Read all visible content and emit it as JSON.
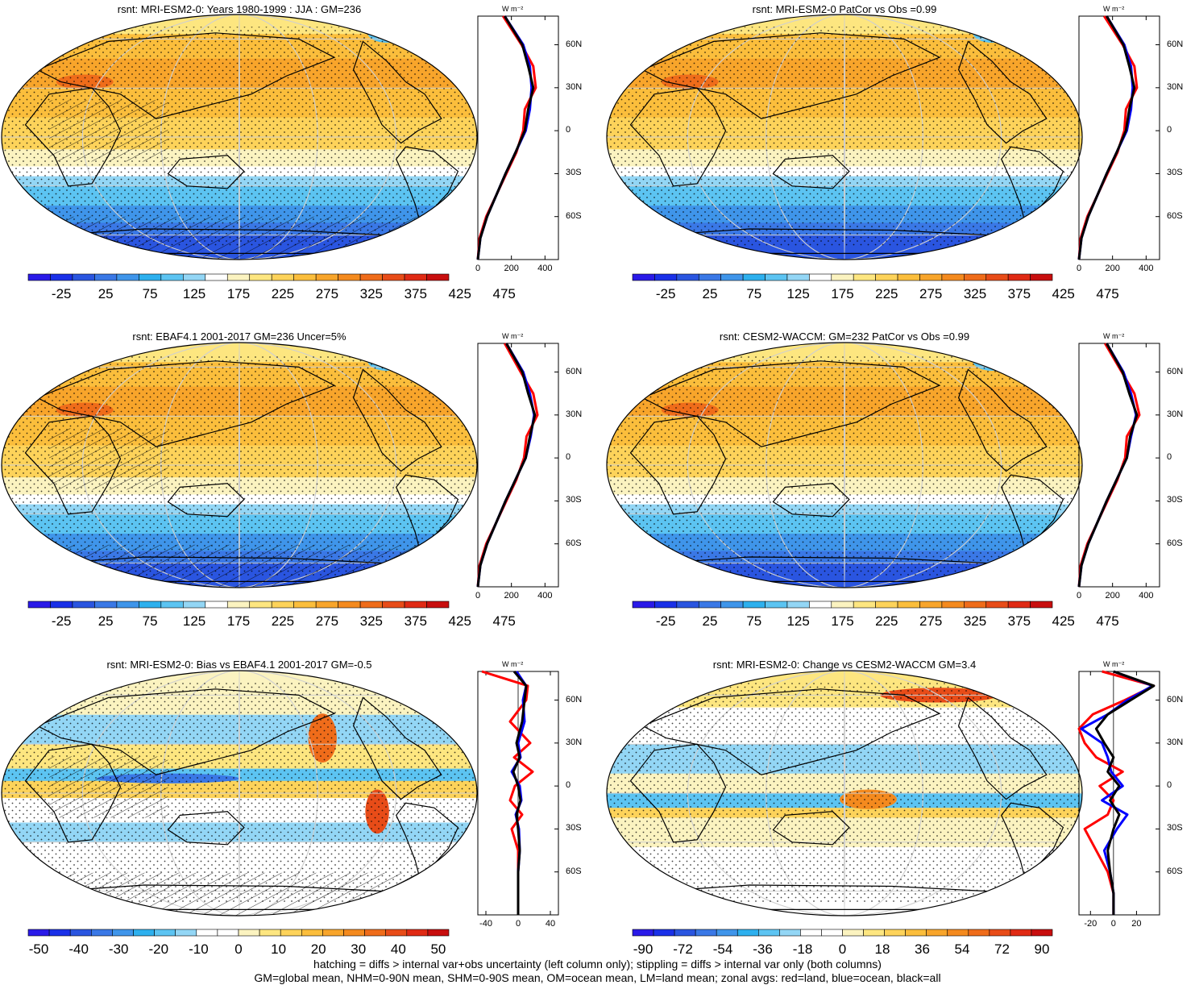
{
  "panels": [
    {
      "id": "p1",
      "title": "rsnt: MRI-ESM2-0: Years 1980-1999 : JJA : GM=236",
      "kind": "abs",
      "hatch": true,
      "cbar_labels": [
        "-25",
        "25",
        "75",
        "125",
        "175",
        "225",
        "275",
        "325",
        "375",
        "425",
        "475"
      ],
      "zonal_xticks": [
        "0",
        "200",
        "400"
      ],
      "zonal_xlim": [
        0,
        480
      ]
    },
    {
      "id": "p2",
      "title": "rsnt: MRI-ESM2-0 PatCor vs Obs =0.99",
      "kind": "abs",
      "hatch": false,
      "cbar_labels": [
        "-25",
        "25",
        "75",
        "125",
        "175",
        "225",
        "275",
        "325",
        "375",
        "425",
        "475"
      ],
      "zonal_xticks": [
        "0",
        "200",
        "400"
      ],
      "zonal_xlim": [
        0,
        480
      ]
    },
    {
      "id": "p3",
      "title": "rsnt: EBAF4.1 2001-2017 GM=236 Uncer=5%",
      "kind": "abs",
      "hatch": true,
      "cbar_labels": [
        "-25",
        "25",
        "75",
        "125",
        "175",
        "225",
        "275",
        "325",
        "375",
        "425",
        "475"
      ],
      "zonal_xticks": [
        "0",
        "200",
        "400"
      ],
      "zonal_xlim": [
        0,
        480
      ]
    },
    {
      "id": "p4",
      "title": "rsnt: CESM2-WACCM: GM=232 PatCor vs Obs =0.99",
      "kind": "abs",
      "hatch": false,
      "cbar_labels": [
        "-25",
        "25",
        "75",
        "125",
        "175",
        "225",
        "275",
        "325",
        "375",
        "425",
        "475"
      ],
      "zonal_xticks": [
        "0",
        "200",
        "400"
      ],
      "zonal_xlim": [
        0,
        480
      ]
    },
    {
      "id": "p5",
      "title": "rsnt: MRI-ESM2-0: Bias vs EBAF4.1 2001-2017 GM=-0.5",
      "kind": "diff",
      "hatch": true,
      "cbar_labels": [
        "-50",
        "-40",
        "-30",
        "-20",
        "-10",
        "0",
        "10",
        "20",
        "30",
        "40",
        "50"
      ],
      "zonal_xticks": [
        "-40",
        "0",
        "40"
      ],
      "zonal_xlim": [
        -50,
        50
      ]
    },
    {
      "id": "p6",
      "title": "rsnt: MRI-ESM2-0: Change vs CESM2-WACCM GM=3.4",
      "kind": "diff",
      "hatch": false,
      "cbar_labels": [
        "-90",
        "-72",
        "-54",
        "-36",
        "-18",
        "0",
        "18",
        "36",
        "54",
        "72",
        "90"
      ],
      "zonal_xticks": [
        "-20",
        "0",
        "20"
      ],
      "zonal_xlim": [
        -30,
        40
      ]
    }
  ],
  "zonal_unit": "W m⁻²",
  "lat_ticks": [
    "60N",
    "30N",
    "0",
    "30S",
    "60S"
  ],
  "colors": {
    "land": "#ff0000",
    "ocean": "#0000ff",
    "all": "#000000"
  },
  "footer": {
    "line1": "hatching = diffs > internal var+obs uncertainty (left column only); stippling = diffs > internal var only (both columns)",
    "line2": "GM=global mean, NHM=0-90N mean, SHM=0-90S mean, OM=ocean mean, LM=land mean; zonal avgs: red=land, blue=ocean, black=all"
  },
  "chart_data": [
    {
      "type": "heatmap",
      "title": "rsnt: MRI-ESM2-0: Years 1980-1999 : JJA : GM=236",
      "zonal_mean": {
        "lat": [
          80,
          60,
          45,
          30,
          15,
          0,
          -15,
          -30,
          -45,
          -60,
          -75,
          -90
        ],
        "all": [
          160,
          265,
          300,
          330,
          300,
          280,
          225,
          165,
          110,
          55,
          15,
          0
        ],
        "land": [
          150,
          260,
          330,
          345,
          280,
          270,
          230,
          170,
          110,
          50,
          10,
          0
        ],
        "ocean": [
          160,
          270,
          310,
          320,
          310,
          285,
          225,
          165,
          110,
          55,
          15,
          0
        ]
      }
    },
    {
      "type": "heatmap",
      "title": "rsnt: MRI-ESM2-0 PatCor vs Obs =0.99",
      "zonal_mean": {
        "lat": [
          80,
          60,
          45,
          30,
          15,
          0,
          -15,
          -30,
          -45,
          -60,
          -75,
          -90
        ],
        "all": [
          165,
          265,
          300,
          330,
          300,
          280,
          225,
          165,
          110,
          55,
          15,
          0
        ],
        "land": [
          150,
          260,
          330,
          345,
          280,
          270,
          230,
          170,
          110,
          50,
          10,
          0
        ],
        "ocean": [
          165,
          270,
          310,
          320,
          310,
          285,
          225,
          165,
          110,
          55,
          15,
          0
        ]
      }
    },
    {
      "type": "heatmap",
      "title": "rsnt: EBAF4.1 2001-2017 GM=236 Uncer=5%",
      "zonal_mean": {
        "lat": [
          80,
          60,
          45,
          30,
          15,
          0,
          -15,
          -30,
          -45,
          -60,
          -75,
          -90
        ],
        "all": [
          170,
          265,
          300,
          340,
          310,
          285,
          225,
          165,
          110,
          55,
          15,
          0
        ],
        "land": [
          160,
          255,
          330,
          355,
          290,
          275,
          230,
          170,
          110,
          50,
          10,
          0
        ],
        "ocean": [
          170,
          270,
          310,
          335,
          315,
          285,
          225,
          165,
          110,
          55,
          15,
          0
        ]
      }
    },
    {
      "type": "heatmap",
      "title": "rsnt: CESM2-WACCM: GM=232 PatCor vs Obs =0.99",
      "zonal_mean": {
        "lat": [
          80,
          60,
          45,
          30,
          15,
          0,
          -15,
          -30,
          -45,
          -60,
          -75,
          -90
        ],
        "all": [
          165,
          260,
          300,
          345,
          305,
          285,
          225,
          165,
          110,
          55,
          15,
          0
        ],
        "land": [
          155,
          255,
          330,
          360,
          285,
          275,
          230,
          170,
          110,
          50,
          10,
          0
        ],
        "ocean": [
          165,
          265,
          310,
          340,
          310,
          285,
          225,
          165,
          110,
          55,
          15,
          0
        ]
      }
    },
    {
      "type": "heatmap",
      "title": "rsnt: MRI-ESM2-0: Bias vs EBAF4.1 2001-2017 GM=-0.5",
      "zonal_mean": {
        "lat": [
          80,
          70,
          60,
          45,
          30,
          20,
          10,
          0,
          -10,
          -20,
          -30,
          -45,
          -60,
          -75,
          -90
        ],
        "all": [
          -5,
          10,
          8,
          5,
          -2,
          2,
          -6,
          0,
          3,
          -2,
          0,
          2,
          0,
          0,
          0
        ],
        "land": [
          -45,
          12,
          10,
          -10,
          15,
          -5,
          18,
          -4,
          -10,
          5,
          -8,
          0,
          0,
          0,
          0
        ],
        "ocean": [
          -2,
          10,
          6,
          8,
          0,
          3,
          -8,
          2,
          4,
          -3,
          1,
          2,
          0,
          0,
          0
        ]
      }
    },
    {
      "type": "heatmap",
      "title": "rsnt: MRI-ESM2-0: Change vs CESM2-WACCM GM=3.4",
      "zonal_mean": {
        "lat": [
          80,
          70,
          60,
          50,
          40,
          30,
          20,
          10,
          0,
          -10,
          -20,
          -30,
          -45,
          -60,
          -75,
          -90
        ],
        "all": [
          0,
          35,
          15,
          -5,
          -15,
          -8,
          0,
          -5,
          5,
          -3,
          5,
          0,
          -5,
          -3,
          0,
          0
        ],
        "land": [
          -10,
          35,
          10,
          -18,
          -30,
          -25,
          -15,
          8,
          -12,
          0,
          -5,
          -25,
          -15,
          -5,
          0,
          0
        ],
        "ocean": [
          0,
          34,
          12,
          -5,
          -28,
          -10,
          -5,
          -2,
          8,
          -10,
          12,
          3,
          -8,
          -3,
          0,
          0
        ]
      }
    }
  ]
}
